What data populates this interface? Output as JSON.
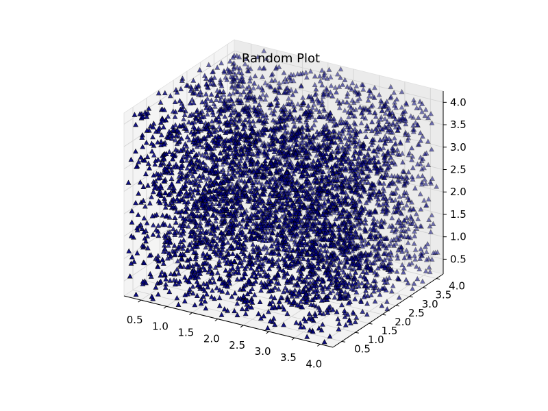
{
  "chart_data": {
    "type": "scatter",
    "projection": "3d",
    "title": "Random Plot",
    "xlabel": "",
    "ylabel": "",
    "zlabel": "",
    "x_ticks": [
      "0.5",
      "1.0",
      "1.5",
      "2.0",
      "2.5",
      "3.0",
      "3.5",
      "4.0"
    ],
    "y_ticks": [
      "0.5",
      "1.0",
      "1.5",
      "2.0",
      "2.5",
      "3.0",
      "3.5",
      "4.0"
    ],
    "z_ticks": [
      "0.5",
      "1.0",
      "1.5",
      "2.0",
      "2.5",
      "3.0",
      "3.5",
      "4.0"
    ],
    "xlim": [
      0.17,
      4.25
    ],
    "ylim": [
      0.17,
      4.25
    ],
    "zlim": [
      0.17,
      4.25
    ],
    "marker": "triangle",
    "marker_color": "#00007f",
    "edge_color": "#000000",
    "grid": true,
    "distribution": {
      "kind": "uniform-random",
      "point_count": 5000,
      "value_range": [
        0.17,
        4.25
      ]
    }
  }
}
